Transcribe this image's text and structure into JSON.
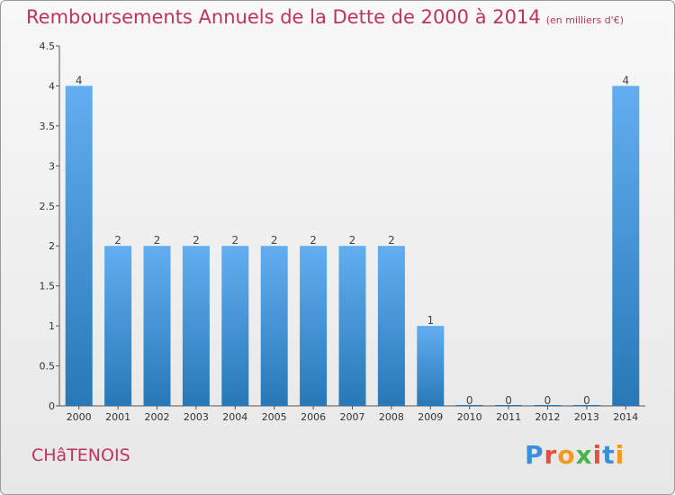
{
  "title": "Remboursements Annuels de la Dette de 2000 à 2014",
  "title_unit": "(en milliers d'€)",
  "commune": "CHâTENOIS",
  "brand": "Proxiti",
  "colors": {
    "title": "#c0345a",
    "bar_top": "#62aef0",
    "bar_bottom": "#2878b8",
    "axis": "#555555",
    "brand": [
      "#3a8fd8",
      "#e94f3b",
      "#f29a1f",
      "#49b548",
      "#e94f3b",
      "#3a8fd8",
      "#f29a1f"
    ]
  },
  "chart_data": {
    "type": "bar",
    "categories": [
      "2000",
      "2001",
      "2002",
      "2003",
      "2004",
      "2005",
      "2006",
      "2007",
      "2008",
      "2009",
      "2010",
      "2011",
      "2012",
      "2013",
      "2014"
    ],
    "values": [
      4,
      2,
      2,
      2,
      2,
      2,
      2,
      2,
      2,
      1,
      0,
      0,
      0,
      0,
      4
    ],
    "value_labels": [
      "4",
      "2",
      "2",
      "2",
      "2",
      "2",
      "2",
      "2",
      "2",
      "1",
      "0",
      "0",
      "0",
      "0",
      "4"
    ],
    "ylim": [
      0,
      4.5
    ],
    "yticks": [
      0,
      0.5,
      1,
      1.5,
      2,
      2.5,
      3,
      3.5,
      4,
      4.5
    ],
    "ytick_labels": [
      "0",
      "0.5",
      "1",
      "1.5",
      "2",
      "2.5",
      "3",
      "3.5",
      "4",
      "4.5"
    ],
    "grid": false,
    "xlabel": "",
    "ylabel": ""
  }
}
